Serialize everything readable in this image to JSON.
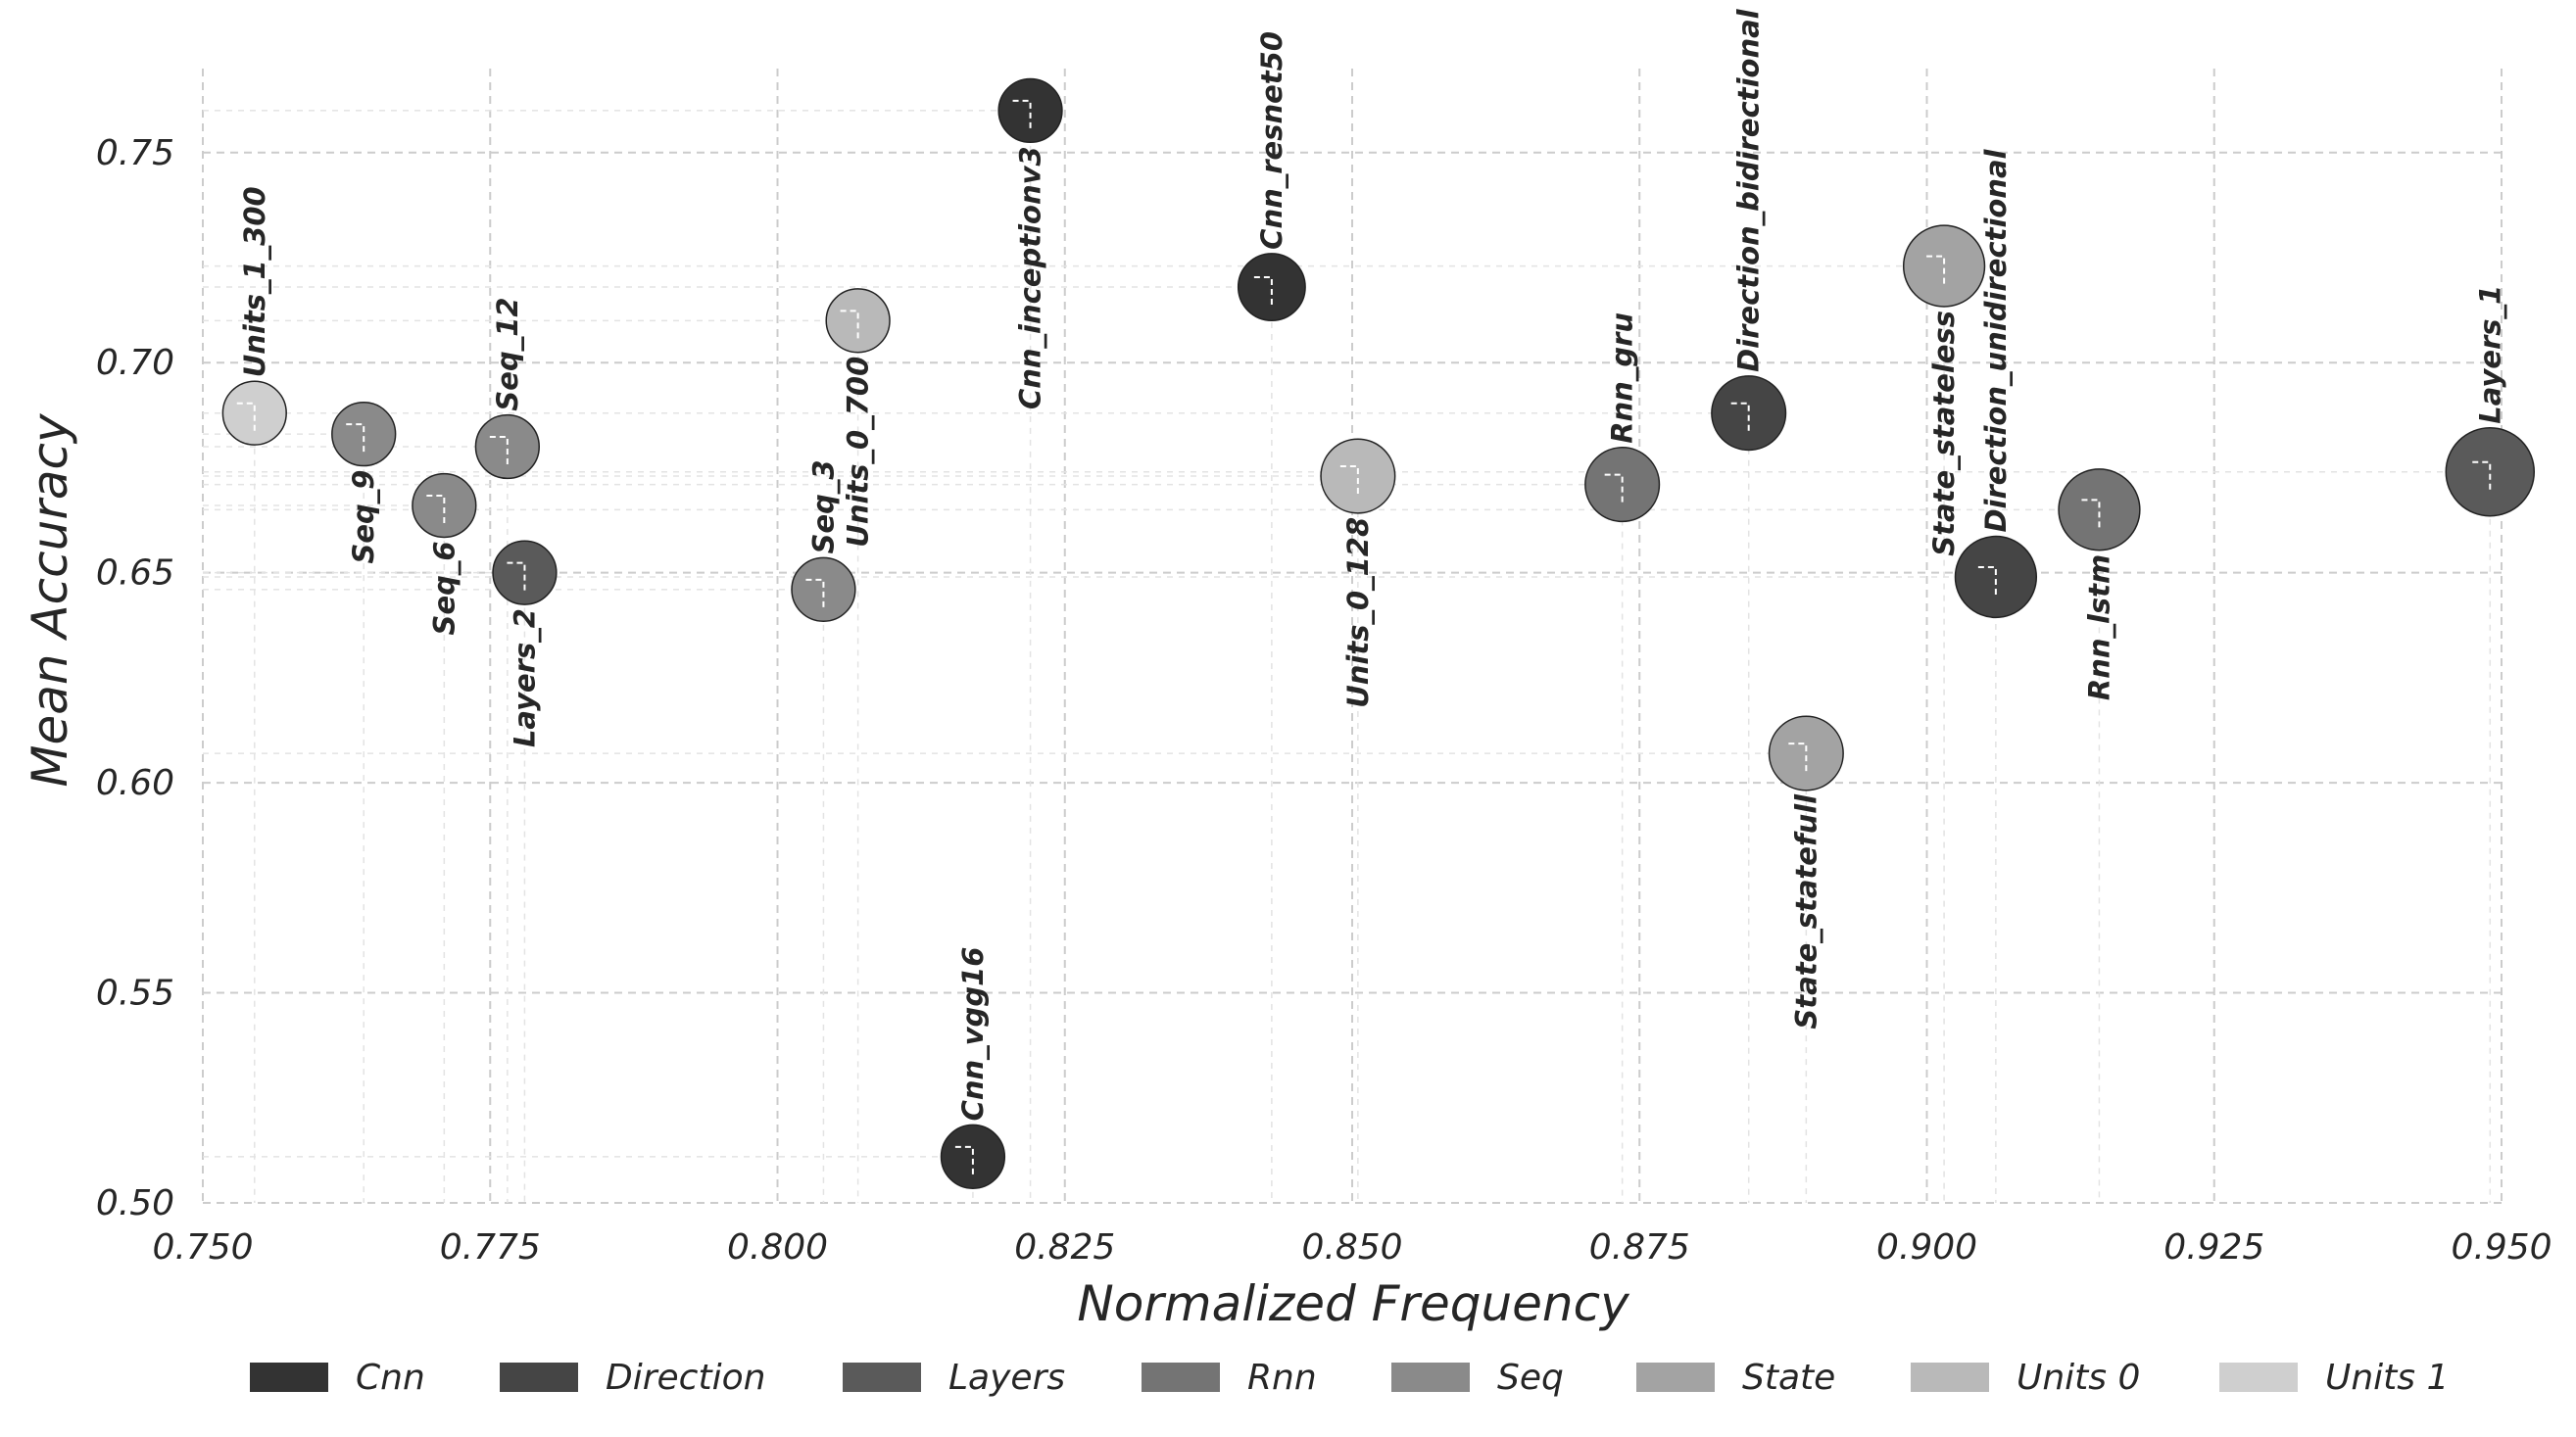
{
  "chart_data": {
    "type": "scatter",
    "title": "",
    "xlabel": "Normalized Frequency",
    "ylabel": "Mean Accuracy",
    "xlim": [
      0.75,
      0.95
    ],
    "ylim": [
      0.5,
      0.77
    ],
    "x_ticks": [
      "0.750",
      "0.775",
      "0.800",
      "0.825",
      "0.850",
      "0.875",
      "0.900",
      "0.925",
      "0.950"
    ],
    "y_ticks": [
      "0.50",
      "0.55",
      "0.60",
      "0.65",
      "0.70",
      "0.75"
    ],
    "grid": true,
    "legend_position": "bottom",
    "groups": [
      {
        "name": "Cnn",
        "color": "#333333"
      },
      {
        "name": "Direction",
        "color": "#454545"
      },
      {
        "name": "Layers",
        "color": "#5a5a5a"
      },
      {
        "name": "Rnn",
        "color": "#747474"
      },
      {
        "name": "Seq",
        "color": "#8a8a8a"
      },
      {
        "name": "State",
        "color": "#a3a3a3"
      },
      {
        "name": "Units 0",
        "color": "#b9b9b9"
      },
      {
        "name": "Units 1",
        "color": "#cfcfcf"
      }
    ],
    "points": [
      {
        "label": "Units_1_300",
        "group": "Units 1",
        "x": 0.7545,
        "y": 0.688,
        "size": 0.3,
        "label_pos": "above"
      },
      {
        "label": "Seq_9",
        "group": "Seq",
        "x": 0.764,
        "y": 0.683,
        "size": 0.3,
        "label_pos": "below"
      },
      {
        "label": "Seq_6",
        "group": "Seq",
        "x": 0.771,
        "y": 0.666,
        "size": 0.3,
        "label_pos": "below"
      },
      {
        "label": "Seq_12",
        "group": "Seq",
        "x": 0.7765,
        "y": 0.68,
        "size": 0.3,
        "label_pos": "above"
      },
      {
        "label": "Layers_2",
        "group": "Layers",
        "x": 0.778,
        "y": 0.65,
        "size": 0.3,
        "label_pos": "below"
      },
      {
        "label": "Seq_3",
        "group": "Seq",
        "x": 0.804,
        "y": 0.646,
        "size": 0.3,
        "label_pos": "above"
      },
      {
        "label": "Units_0_700",
        "group": "Units 0",
        "x": 0.807,
        "y": 0.71,
        "size": 0.3,
        "label_pos": "below"
      },
      {
        "label": "Cnn_vgg16",
        "group": "Cnn",
        "x": 0.817,
        "y": 0.511,
        "size": 0.3,
        "label_pos": "above"
      },
      {
        "label": "Cnn_inceptionv3",
        "group": "Cnn",
        "x": 0.822,
        "y": 0.76,
        "size": 0.3,
        "label_pos": "below"
      },
      {
        "label": "Cnn_resnet50",
        "group": "Cnn",
        "x": 0.843,
        "y": 0.718,
        "size": 0.4,
        "label_pos": "above"
      },
      {
        "label": "Units_0_128",
        "group": "Units 0",
        "x": 0.8505,
        "y": 0.673,
        "size": 0.6,
        "label_pos": "below"
      },
      {
        "label": "Rnn_gru",
        "group": "Rnn",
        "x": 0.8735,
        "y": 0.671,
        "size": 0.6,
        "label_pos": "above"
      },
      {
        "label": "Direction_bidirectional",
        "group": "Direction",
        "x": 0.8845,
        "y": 0.688,
        "size": 0.6,
        "label_pos": "above"
      },
      {
        "label": "State_statefull",
        "group": "State",
        "x": 0.8895,
        "y": 0.607,
        "size": 0.6,
        "label_pos": "below"
      },
      {
        "label": "State_stateless",
        "group": "State",
        "x": 0.9015,
        "y": 0.723,
        "size": 0.8,
        "label_pos": "below"
      },
      {
        "label": "Direction_unidirectional",
        "group": "Direction",
        "x": 0.906,
        "y": 0.649,
        "size": 0.8,
        "label_pos": "above"
      },
      {
        "label": "Rnn_lstm",
        "group": "Rnn",
        "x": 0.915,
        "y": 0.665,
        "size": 0.8,
        "label_pos": "below"
      },
      {
        "label": "Layers_1",
        "group": "Layers",
        "x": 0.949,
        "y": 0.674,
        "size": 1.0,
        "label_pos": "above"
      }
    ]
  }
}
